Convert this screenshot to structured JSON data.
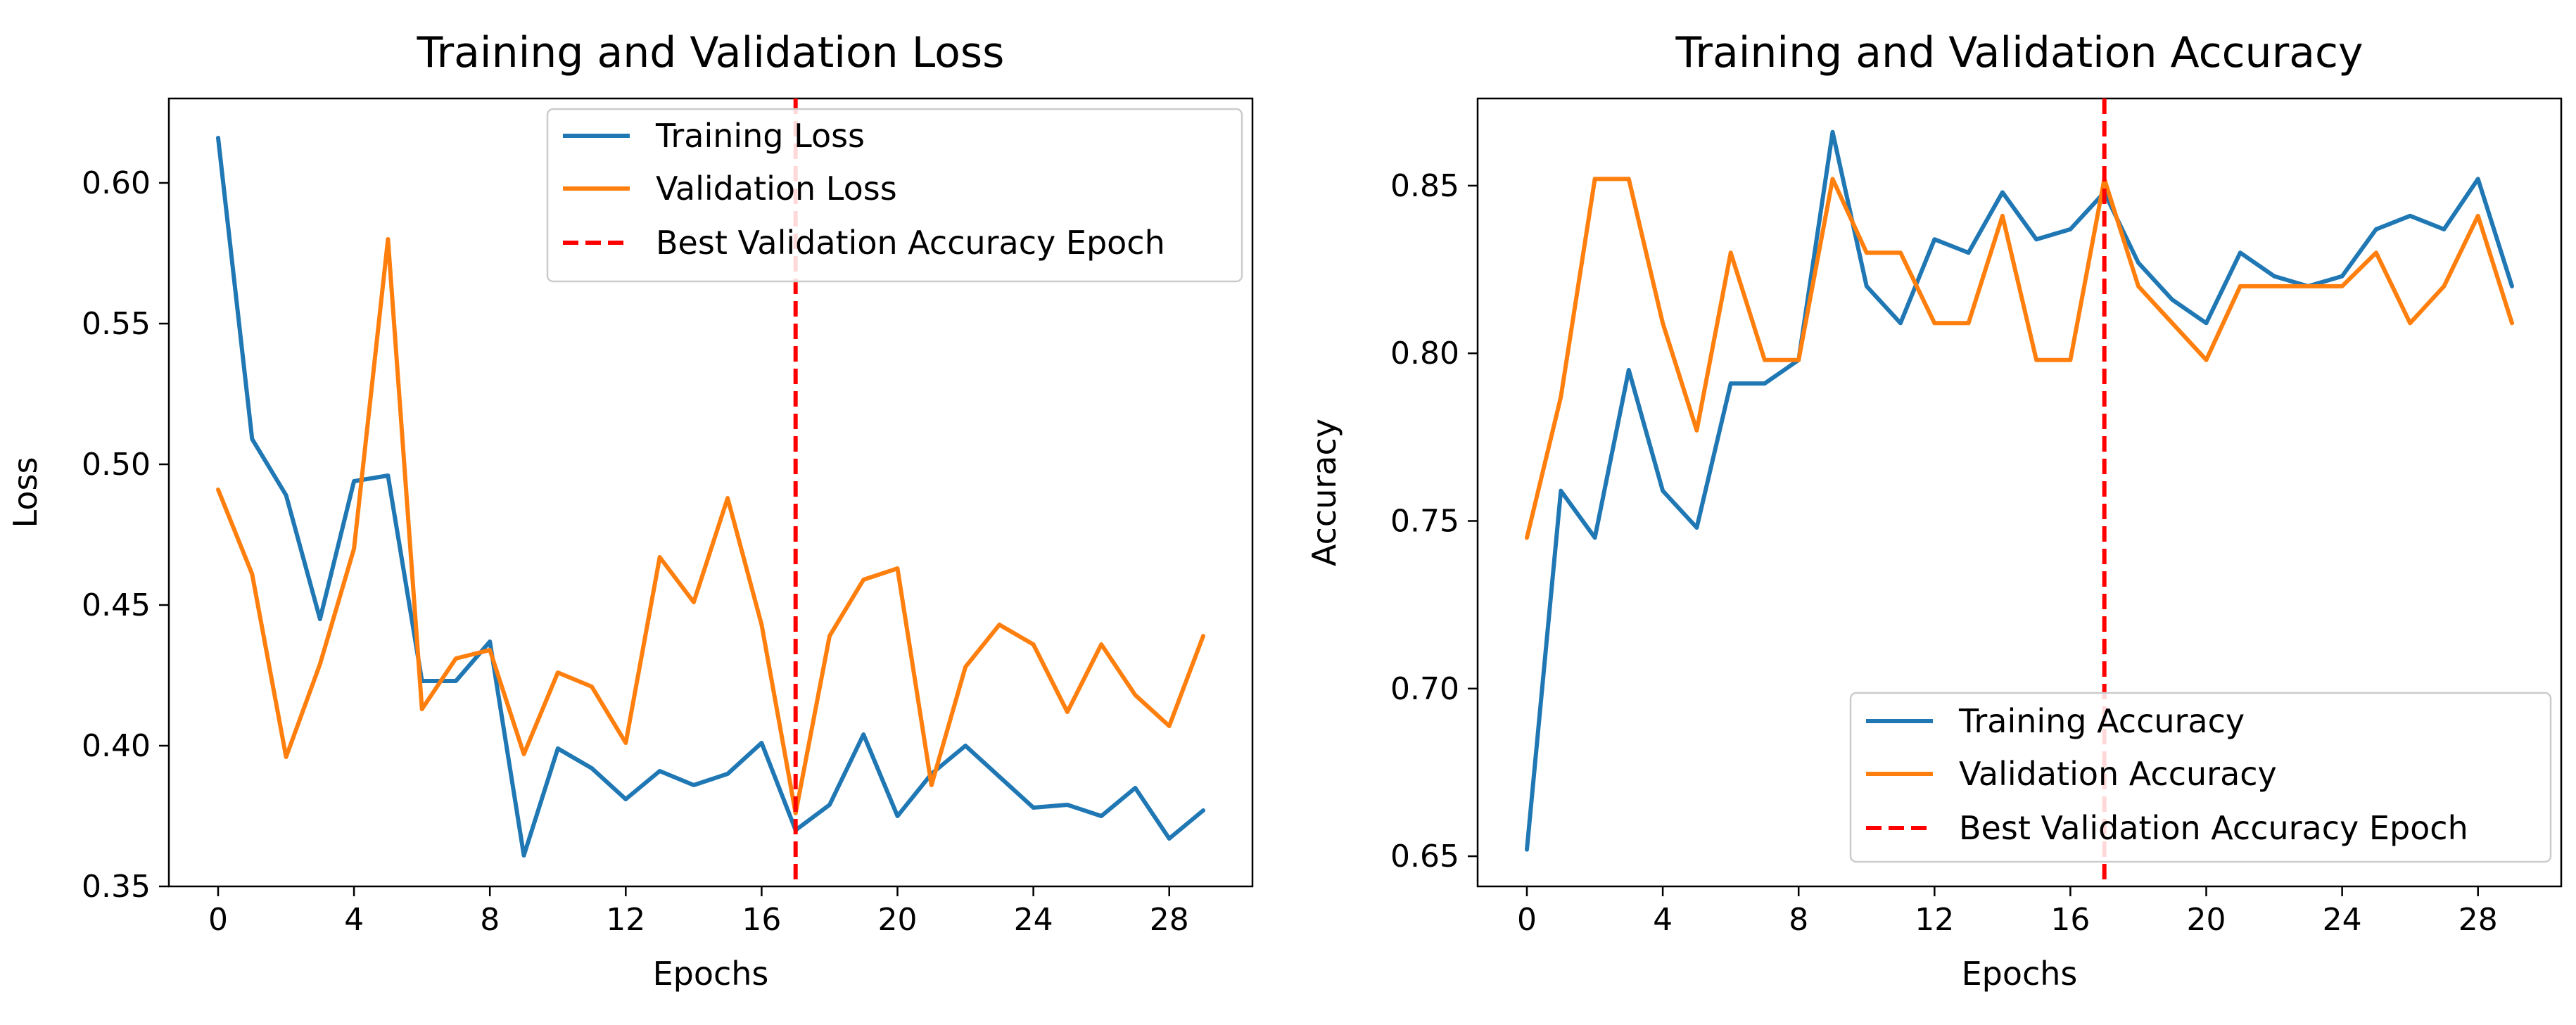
{
  "chart_data": [
    {
      "type": "line",
      "title": "Training and Validation Loss",
      "xlabel": "Epochs",
      "ylabel": "Loss",
      "xlim": [
        -1.45,
        30.45
      ],
      "ylim": [
        0.35,
        0.63
      ],
      "xticks": [
        0,
        4,
        8,
        12,
        16,
        20,
        24,
        28
      ],
      "yticks": [
        0.35,
        0.4,
        0.45,
        0.5,
        0.55,
        0.6
      ],
      "ytick_labels": [
        "0.35",
        "0.40",
        "0.45",
        "0.50",
        "0.55",
        "0.60"
      ],
      "x": [
        0,
        1,
        2,
        3,
        4,
        5,
        6,
        7,
        8,
        9,
        10,
        11,
        12,
        13,
        14,
        15,
        16,
        17,
        18,
        19,
        20,
        21,
        22,
        23,
        24,
        25,
        26,
        27,
        28,
        29
      ],
      "series": [
        {
          "name": "Training Loss",
          "color": "#1f77b4",
          "values": [
            0.616,
            0.509,
            0.489,
            0.445,
            0.494,
            0.496,
            0.423,
            0.423,
            0.437,
            0.361,
            0.399,
            0.392,
            0.381,
            0.391,
            0.386,
            0.39,
            0.401,
            0.37,
            0.379,
            0.404,
            0.375,
            0.39,
            0.4,
            0.389,
            0.378,
            0.379,
            0.375,
            0.385,
            0.367,
            0.377
          ]
        },
        {
          "name": "Validation Loss",
          "color": "#ff7f0e",
          "values": [
            0.491,
            0.461,
            0.396,
            0.429,
            0.47,
            0.58,
            0.413,
            0.431,
            0.434,
            0.397,
            0.426,
            0.421,
            0.401,
            0.467,
            0.451,
            0.488,
            0.443,
            0.376,
            0.439,
            0.459,
            0.463,
            0.386,
            0.428,
            0.443,
            0.436,
            0.412,
            0.436,
            0.418,
            0.407,
            0.439
          ]
        }
      ],
      "vline": {
        "name": "Best Validation Accuracy Epoch",
        "x": 17,
        "color": "#ff0000"
      },
      "legend_location": "upper right"
    },
    {
      "type": "line",
      "title": "Training and Validation Accuracy",
      "xlabel": "Epochs",
      "ylabel": "Accuracy",
      "xlim": [
        -1.45,
        30.45
      ],
      "ylim": [
        0.641,
        0.876
      ],
      "xticks": [
        0,
        4,
        8,
        12,
        16,
        20,
        24,
        28
      ],
      "yticks": [
        0.65,
        0.7,
        0.75,
        0.8,
        0.85
      ],
      "ytick_labels": [
        "0.65",
        "0.70",
        "0.75",
        "0.80",
        "0.85"
      ],
      "x": [
        0,
        1,
        2,
        3,
        4,
        5,
        6,
        7,
        8,
        9,
        10,
        11,
        12,
        13,
        14,
        15,
        16,
        17,
        18,
        19,
        20,
        21,
        22,
        23,
        24,
        25,
        26,
        27,
        28,
        29
      ],
      "series": [
        {
          "name": "Training Accuracy",
          "color": "#1f77b4",
          "values": [
            0.652,
            0.759,
            0.745,
            0.795,
            0.759,
            0.748,
            0.791,
            0.791,
            0.798,
            0.866,
            0.82,
            0.809,
            0.834,
            0.83,
            0.848,
            0.834,
            0.837,
            0.848,
            0.827,
            0.816,
            0.809,
            0.83,
            0.823,
            0.82,
            0.823,
            0.837,
            0.841,
            0.837,
            0.852,
            0.82
          ]
        },
        {
          "name": "Validation Accuracy",
          "color": "#ff7f0e",
          "values": [
            0.745,
            0.787,
            0.852,
            0.852,
            0.809,
            0.777,
            0.83,
            0.798,
            0.798,
            0.852,
            0.83,
            0.83,
            0.809,
            0.809,
            0.841,
            0.798,
            0.798,
            0.852,
            0.82,
            0.809,
            0.798,
            0.82,
            0.82,
            0.82,
            0.82,
            0.83,
            0.809,
            0.82,
            0.841,
            0.809
          ]
        }
      ],
      "vline": {
        "name": "Best Validation Accuracy Epoch",
        "x": 17,
        "color": "#ff0000"
      },
      "legend_location": "lower right"
    }
  ]
}
